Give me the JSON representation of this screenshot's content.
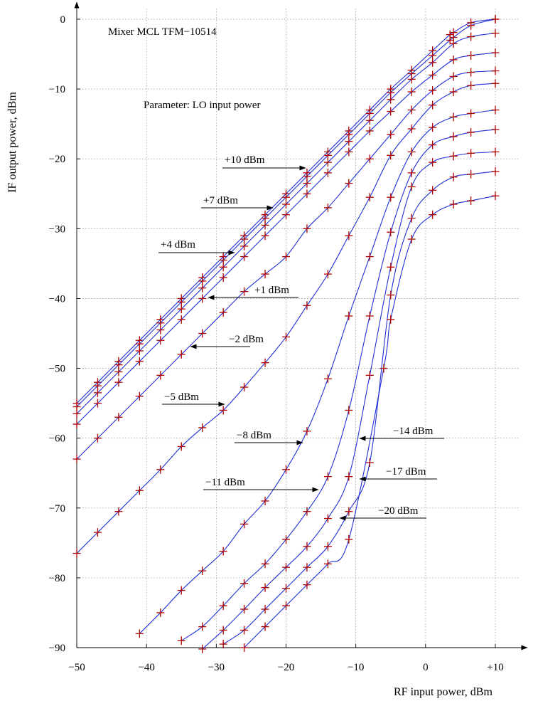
{
  "chart_data": {
    "type": "line",
    "title": "Mixer MCL TFM−10514",
    "subtitle": "Parameter: LO input power",
    "xlabel": "RF input power, dBm",
    "ylabel": "IF output power, dBm",
    "xlim": [
      -50,
      10
    ],
    "ylim": [
      -90,
      0
    ],
    "grid": true,
    "x_ticks": [
      -50,
      -40,
      -30,
      -20,
      -10,
      0,
      10
    ],
    "x_tick_labels": [
      "−50",
      "−40",
      "−30",
      "−20",
      "−10",
      "0",
      "+10"
    ],
    "y_ticks": [
      0,
      -10,
      -20,
      -30,
      -40,
      -50,
      -60,
      -70,
      -80,
      -90
    ],
    "y_tick_labels": [
      "0",
      "−10",
      "−20",
      "−30",
      "−40",
      "−50",
      "−60",
      "−70",
      "−80",
      "−90"
    ],
    "line_color": "#1f2fd6",
    "marker_color": "#b00000",
    "series": [
      {
        "label": "+10 dBm",
        "x": [
          -50,
          -47,
          -44,
          -41,
          -38,
          -35,
          -32,
          -29,
          -26,
          -23,
          -20,
          -17,
          -14,
          -11,
          -8,
          -5,
          -2,
          1,
          3.5,
          4,
          6.5,
          10
        ],
        "y": [
          -55,
          -52,
          -49,
          -46,
          -43,
          -40,
          -37,
          -34,
          -31,
          -28,
          -25,
          -22,
          -19,
          -16,
          -13,
          -10,
          -7.3,
          -4.5,
          -2.2,
          -1.9,
          -0.5,
          0
        ]
      },
      {
        "label": "+7 dBm",
        "x": [
          -50,
          -47,
          -44,
          -41,
          -38,
          -35,
          -32,
          -29,
          -26,
          -23,
          -20,
          -17,
          -14,
          -11,
          -8,
          -5,
          -2,
          1,
          3.5,
          4,
          6.5,
          10
        ],
        "y": [
          -55.5,
          -52.5,
          -49.5,
          -46.5,
          -43.5,
          -40.5,
          -37.5,
          -34.5,
          -31.5,
          -28.5,
          -25.5,
          -22.5,
          -19.5,
          -16.5,
          -13.5,
          -10.5,
          -7.8,
          -5.2,
          -3,
          -2.6,
          -0.9,
          0
        ]
      },
      {
        "label": "+4 dBm",
        "x": [
          -50,
          -47,
          -44,
          -41,
          -38,
          -35,
          -32,
          -29,
          -26,
          -23,
          -20,
          -17,
          -14,
          -11,
          -8,
          -5,
          -2,
          1,
          4,
          6.5,
          10
        ],
        "y": [
          -56.5,
          -53.5,
          -50.5,
          -47.5,
          -44.5,
          -41.5,
          -38.5,
          -35.5,
          -32.5,
          -29.5,
          -26.5,
          -23.5,
          -20.5,
          -17.5,
          -14.5,
          -11.5,
          -8.6,
          -6.2,
          -3.5,
          -2.5,
          -2
        ]
      },
      {
        "label": "+1 dBm",
        "x": [
          -50,
          -47,
          -44,
          -41,
          -38,
          -35,
          -32,
          -29,
          -26,
          -23,
          -20,
          -17,
          -14,
          -11,
          -8,
          -5,
          -2,
          1,
          4,
          6.5,
          10
        ],
        "y": [
          -58,
          -55,
          -52,
          -49,
          -46,
          -43,
          -40,
          -37,
          -34,
          -31,
          -28,
          -25,
          -22,
          -19,
          -16,
          -13.2,
          -10.4,
          -8,
          -5.8,
          -5.2,
          -4.8
        ]
      },
      {
        "label": "−2 dBm",
        "x": [
          -50,
          -47,
          -44,
          -41,
          -38,
          -35,
          -32,
          -29,
          -26,
          -23,
          -20,
          -17,
          -14,
          -11,
          -8,
          -5,
          -2,
          1,
          4,
          6.5,
          10
        ],
        "y": [
          -63,
          -60,
          -57,
          -54,
          -51,
          -48,
          -45,
          -42,
          -39,
          -36.5,
          -34,
          -30,
          -27,
          -23.5,
          -20,
          -16.5,
          -13,
          -10.2,
          -8.2,
          -7.6,
          -7.4
        ]
      },
      {
        "label": "−5 dBm",
        "x": [
          -50,
          -47,
          -44,
          -41,
          -38,
          -35,
          -32,
          -29,
          -26,
          -23,
          -20,
          -17,
          -14,
          -11,
          -8,
          -5,
          -2,
          1,
          4,
          6.5,
          10
        ],
        "y": [
          -76.5,
          -73.5,
          -70.5,
          -67.5,
          -64.5,
          -61.2,
          -58.5,
          -56,
          -52.7,
          -49.2,
          -45.5,
          -41,
          -36.5,
          -31,
          -25.5,
          -19.5,
          -15.7,
          -12.3,
          -10.4,
          -9.5,
          -9.2
        ]
      },
      {
        "label": "−8 dBm",
        "x": [
          -41,
          -38,
          -35,
          -32,
          -29,
          -26,
          -23,
          -20,
          -17,
          -14,
          -11,
          -8,
          -5,
          -2,
          1,
          4,
          6.5,
          10
        ],
        "y": [
          -88,
          -85,
          -81.8,
          -79,
          -76.2,
          -72.3,
          -69,
          -64.5,
          -59,
          -51.5,
          -42.5,
          -34,
          -25.5,
          -19,
          -15.5,
          -14,
          -13.5,
          -13
        ]
      },
      {
        "label": "−11 dBm",
        "x": [
          -35,
          -32,
          -29,
          -26,
          -23,
          -20,
          -17,
          -14,
          -11,
          -8,
          -5,
          -2,
          1,
          4,
          6.5,
          10
        ],
        "y": [
          -89,
          -87,
          -84,
          -80.8,
          -78,
          -74.5,
          -70.5,
          -65.5,
          -56,
          -42.5,
          -30.5,
          -22,
          -18,
          -16.8,
          -16.2,
          -15.8
        ]
      },
      {
        "label": "−14 dBm",
        "x": [
          -32,
          -29,
          -26,
          -23,
          -20,
          -17,
          -14,
          -11,
          -8,
          -5,
          -2,
          1,
          4,
          6.5,
          10
        ],
        "y": [
          -90.2,
          -87.5,
          -84.5,
          -81.4,
          -78.5,
          -75.5,
          -71.5,
          -65.5,
          -51,
          -35.5,
          -24,
          -20.5,
          -19.6,
          -19.2,
          -19
        ]
      },
      {
        "label": "−17 dBm",
        "x": [
          -29,
          -26,
          -23,
          -20,
          -17,
          -14,
          -11,
          -8,
          -5,
          -2,
          1,
          4,
          6.5,
          10
        ],
        "y": [
          -89.5,
          -87.5,
          -84.5,
          -81.5,
          -78.5,
          -75.5,
          -70.5,
          -63.5,
          -39.5,
          -28.5,
          -24.5,
          -22.6,
          -22.2,
          -21.8
        ]
      },
      {
        "label": "−20 dBm",
        "x": [
          -26,
          -23,
          -20,
          -17,
          -14,
          -11,
          -6,
          -5,
          -2,
          1,
          4,
          6.5,
          10
        ],
        "y": [
          -90,
          -87,
          -84,
          -81,
          -78,
          -74.5,
          -50,
          -43,
          -31.5,
          -28,
          -26.5,
          -26,
          -25.3
        ]
      }
    ],
    "annotations": [
      {
        "text": "+10 dBm",
        "arrow_to": "right"
      },
      {
        "text": "+7 dBm",
        "arrow_to": "right"
      },
      {
        "text": "+4 dBm",
        "arrow_to": "right"
      },
      {
        "text": "+1 dBm",
        "arrow_to": "left"
      },
      {
        "text": "−2 dBm",
        "arrow_to": "left"
      },
      {
        "text": "−5 dBm",
        "arrow_to": "right"
      },
      {
        "text": "−8 dBm",
        "arrow_to": "right"
      },
      {
        "text": "−11 dBm",
        "arrow_to": "right"
      },
      {
        "text": "−14 dBm",
        "arrow_to": "left"
      },
      {
        "text": "−17 dBm",
        "arrow_to": "left"
      },
      {
        "text": "−20 dBm",
        "arrow_to": "left"
      }
    ]
  }
}
